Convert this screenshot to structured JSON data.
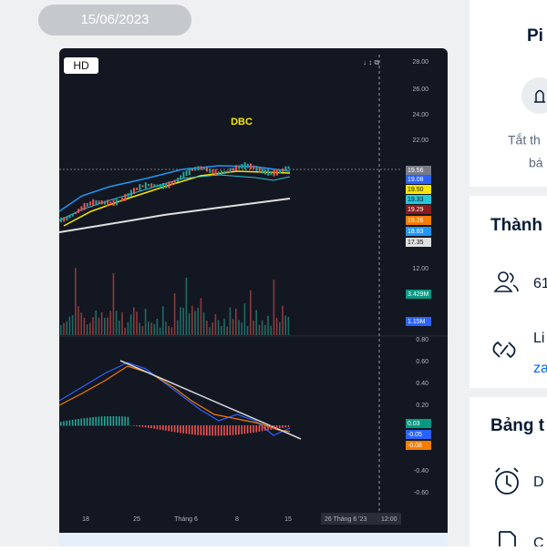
{
  "date": "15/06/2023",
  "image": {
    "badge": "HD",
    "symbol": "DBC",
    "price_axis": [
      "28.00",
      "26.00",
      "24.00",
      "22.00",
      "12.00",
      "0.80",
      "0.60",
      "0.40",
      "0.20",
      "-0.40",
      "-0.60"
    ],
    "tags": [
      {
        "text": "19.56",
        "color": "#787b86"
      },
      {
        "text": "19.08",
        "color": "#2962ff"
      },
      {
        "text": "19.50",
        "color": "#f7e600"
      },
      {
        "text": "19.33",
        "color": "#26c6da"
      },
      {
        "text": "19.29",
        "color": "#8b1a1a"
      },
      {
        "text": "19.26",
        "color": "#f57c00"
      },
      {
        "text": "18.83",
        "color": "#2196f3"
      },
      {
        "text": "17.35",
        "color": "#e0e0e0"
      },
      {
        "text": "3.429M",
        "color": "#089981"
      },
      {
        "text": "1.15M",
        "color": "#2962ff"
      },
      {
        "text": "0.03",
        "color": "#089981"
      },
      {
        "text": "-0.05",
        "color": "#2962ff"
      },
      {
        "text": "-0.08",
        "color": "#f57c00"
      }
    ],
    "x_axis": [
      "18",
      "25",
      "Tháng 6",
      "8",
      "15"
    ],
    "crosshair_date": "26 Tháng 6 '23",
    "crosshair_time": "12:00"
  },
  "sidebar": {
    "title": "Pi",
    "mute_line1": "Tắt th",
    "mute_line2": "bá",
    "members_heading": "Thành",
    "members_count": "61",
    "link_label": "Li",
    "link_value": "za",
    "board_heading": "Bảng t",
    "reminder": "D",
    "notes": "C"
  }
}
